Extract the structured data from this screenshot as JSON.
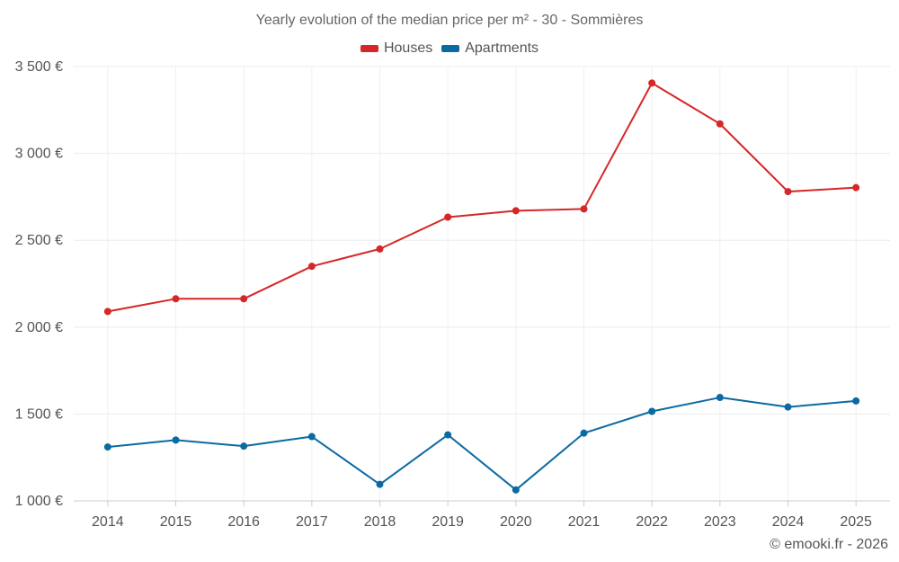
{
  "chart_data": {
    "type": "line",
    "title": "Yearly evolution of the median price per m² - 30 - Sommières",
    "xlabel": "",
    "ylabel": "",
    "categories": [
      "2014",
      "2015",
      "2016",
      "2017",
      "2018",
      "2019",
      "2020",
      "2021",
      "2022",
      "2023",
      "2024",
      "2025"
    ],
    "ylim": [
      1000,
      3500
    ],
    "yticks": [
      1000,
      1500,
      2000,
      2500,
      3000,
      3500
    ],
    "ytick_labels": [
      "1 000 €",
      "1 500 €",
      "2 000 €",
      "2 500 €",
      "3 000 €",
      "3 500 €"
    ],
    "grid": true,
    "legend_position": "top-center",
    "series": [
      {
        "name": "Houses",
        "color": "#d62728",
        "values": [
          2090,
          2163,
          2163,
          2350,
          2450,
          2633,
          2670,
          2680,
          3405,
          3170,
          2780,
          2803
        ]
      },
      {
        "name": "Apartments",
        "color": "#0b6aa2",
        "values": [
          1310,
          1350,
          1315,
          1370,
          1095,
          1380,
          1063,
          1390,
          1515,
          1595,
          1540,
          1575
        ]
      }
    ]
  },
  "footer": {
    "copyright": "© emooki.fr - 2026"
  }
}
